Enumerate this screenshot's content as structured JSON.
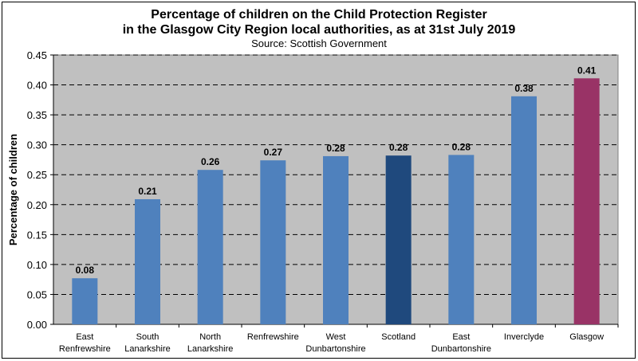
{
  "chart_data": {
    "type": "bar",
    "title_line1": "Percentage of children on the Child Protection Register",
    "title_line2": "in the Glasgow City Region local authorities, as at 31st July 2019",
    "subtitle": "Source: Scottish Government",
    "ylabel": "Percentage of children",
    "xlabel": "",
    "ylim": [
      0,
      0.45
    ],
    "yticks": [
      "0.00",
      "0.05",
      "0.10",
      "0.15",
      "0.20",
      "0.25",
      "0.30",
      "0.35",
      "0.40",
      "0.45"
    ],
    "grid": "horizontal dashed",
    "legend": "none",
    "categories": [
      [
        "East",
        "Renfrewshire"
      ],
      [
        "South",
        "Lanarkshire"
      ],
      [
        "North",
        "Lanarkshire"
      ],
      [
        "Renfrewshire"
      ],
      [
        "West",
        "Dunbartonshire"
      ],
      [
        "Scotland"
      ],
      [
        "East",
        "Dunbartonshire"
      ],
      [
        "Inverclyde"
      ],
      [
        "Glasgow"
      ]
    ],
    "values": [
      0.077,
      0.209,
      0.258,
      0.274,
      0.281,
      0.282,
      0.283,
      0.381,
      0.411
    ],
    "data_labels": [
      "0.08",
      "0.21",
      "0.26",
      "0.27",
      "0.28",
      "0.28",
      "0.28",
      "0.38",
      "0.41"
    ],
    "bar_colors": [
      "#4f81bd",
      "#4f81bd",
      "#4f81bd",
      "#4f81bd",
      "#4f81bd",
      "#1f497d",
      "#4f81bd",
      "#4f81bd",
      "#993366"
    ],
    "plot_background": "#c0c0c0"
  }
}
